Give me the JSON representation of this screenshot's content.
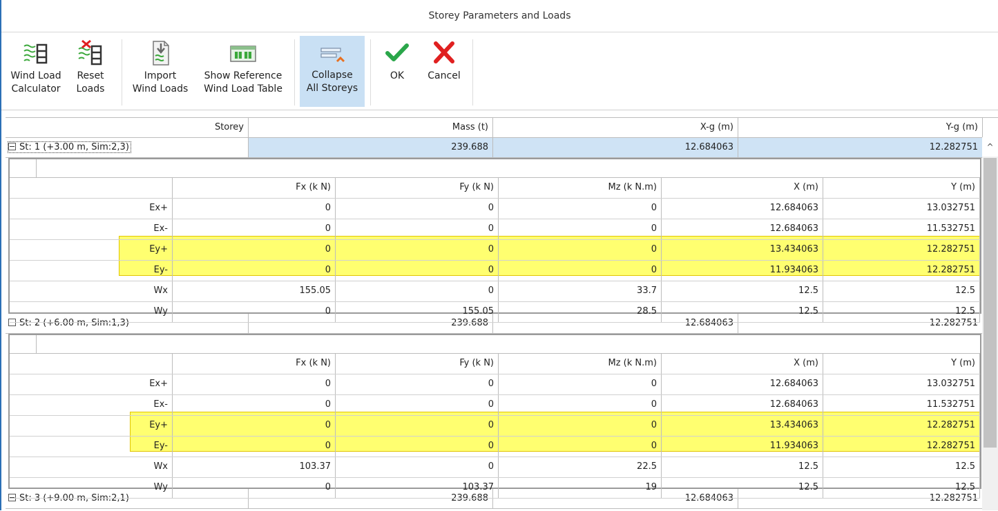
{
  "window": {
    "title": "Storey Parameters and Loads"
  },
  "toolbar": {
    "wind_calc": {
      "line1": "Wind Load",
      "line2": "Calculator",
      "icon": "wind-load-calculator-icon"
    },
    "reset": {
      "line1": "Reset",
      "line2": "Loads",
      "icon": "reset-loads-icon"
    },
    "import": {
      "line1": "Import",
      "line2": "Wind Loads",
      "icon": "import-wind-loads-icon"
    },
    "reference": {
      "line1": "Show Reference",
      "line2": "Wind Load Table",
      "icon": "reference-table-icon"
    },
    "collapse": {
      "line1": "Collapse",
      "line2": "All Storeys",
      "icon": "collapse-icon",
      "active": true
    },
    "ok": {
      "label": "OK",
      "icon": "checkmark-icon",
      "color": "#2aa64a"
    },
    "cancel": {
      "label": "Cancel",
      "icon": "close-icon",
      "color": "#e02020"
    }
  },
  "grid": {
    "columns": [
      "Storey",
      "Mass (t)",
      "X-g (m)",
      "Y-g (m)"
    ],
    "detail_columns": [
      "Fx (k N)",
      "Fy (k N)",
      "Mz (k N.m)",
      "X (m)",
      "Y (m)"
    ],
    "storeys": [
      {
        "name": "St: 1 (+3.00 m, Sim:2,3)",
        "mass": "239.688",
        "xg": "12.684063",
        "yg": "12.282751",
        "selected": true,
        "loads": [
          {
            "case": "Ex+",
            "fx": "0",
            "fy": "0",
            "mz": "0",
            "x": "12.684063",
            "y": "13.032751"
          },
          {
            "case": "Ex-",
            "fx": "0",
            "fy": "0",
            "mz": "0",
            "x": "12.684063",
            "y": "11.532751"
          },
          {
            "case": "Ey+",
            "fx": "0",
            "fy": "0",
            "mz": "0",
            "x": "13.434063",
            "y": "12.282751"
          },
          {
            "case": "Ey-",
            "fx": "0",
            "fy": "0",
            "mz": "0",
            "x": "11.934063",
            "y": "12.282751"
          },
          {
            "case": "Wx",
            "fx": "155.05",
            "fy": "0",
            "mz": "33.7",
            "x": "12.5",
            "y": "12.5"
          },
          {
            "case": "Wy",
            "fx": "0",
            "fy": "155.05",
            "mz": "28.5",
            "x": "12.5",
            "y": "12.5"
          }
        ]
      },
      {
        "name": "St: 2 (+6.00 m, Sim:1,3)",
        "mass": "239.688",
        "xg": "12.684063",
        "yg": "12.282751",
        "selected": false,
        "loads": [
          {
            "case": "Ex+",
            "fx": "0",
            "fy": "0",
            "mz": "0",
            "x": "12.684063",
            "y": "13.032751"
          },
          {
            "case": "Ex-",
            "fx": "0",
            "fy": "0",
            "mz": "0",
            "x": "12.684063",
            "y": "11.532751"
          },
          {
            "case": "Ey+",
            "fx": "0",
            "fy": "0",
            "mz": "0",
            "x": "13.434063",
            "y": "12.282751"
          },
          {
            "case": "Ey-",
            "fx": "0",
            "fy": "0",
            "mz": "0",
            "x": "11.934063",
            "y": "12.282751"
          },
          {
            "case": "Wx",
            "fx": "103.37",
            "fy": "0",
            "mz": "22.5",
            "x": "12.5",
            "y": "12.5"
          },
          {
            "case": "Wy",
            "fx": "0",
            "fy": "103.37",
            "mz": "19",
            "x": "12.5",
            "y": "12.5"
          }
        ]
      },
      {
        "name": "St: 3 (+9.00 m, Sim:2,1)",
        "mass": "239.688",
        "xg": "12.684063",
        "yg": "12.282751",
        "selected": false,
        "loads": []
      }
    ]
  },
  "highlight_color": "#ffff70"
}
